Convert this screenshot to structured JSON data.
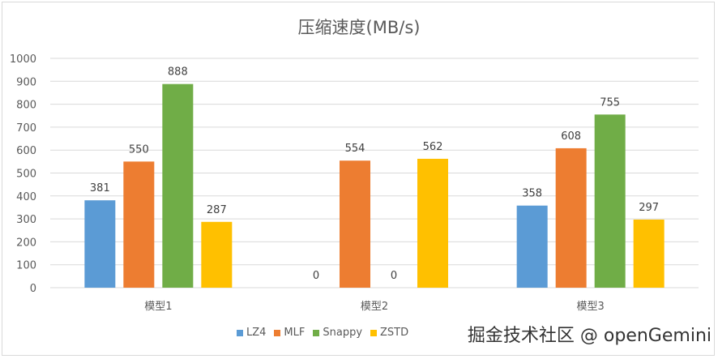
{
  "chart_data": {
    "type": "bar",
    "title": "压缩速度(MB/s)",
    "categories": [
      "模型1",
      "模型2",
      "模型3"
    ],
    "series": [
      {
        "name": "LZ4",
        "color": "#5b9bd5",
        "values": [
          381,
          0,
          358
        ]
      },
      {
        "name": "MLF",
        "color": "#ed7d31",
        "values": [
          550,
          554,
          608
        ]
      },
      {
        "name": "Snappy",
        "color": "#70ad47",
        "values": [
          888,
          0,
          755
        ]
      },
      {
        "name": "ZSTD",
        "color": "#ffc000",
        "values": [
          287,
          562,
          297
        ]
      }
    ],
    "ylim": [
      0,
      1000
    ],
    "yticks": [
      0,
      100,
      200,
      300,
      400,
      500,
      600,
      700,
      800,
      900,
      1000
    ],
    "grid": true,
    "legend": "bottom"
  },
  "watermark": "掘金技术社区 @ openGemini"
}
